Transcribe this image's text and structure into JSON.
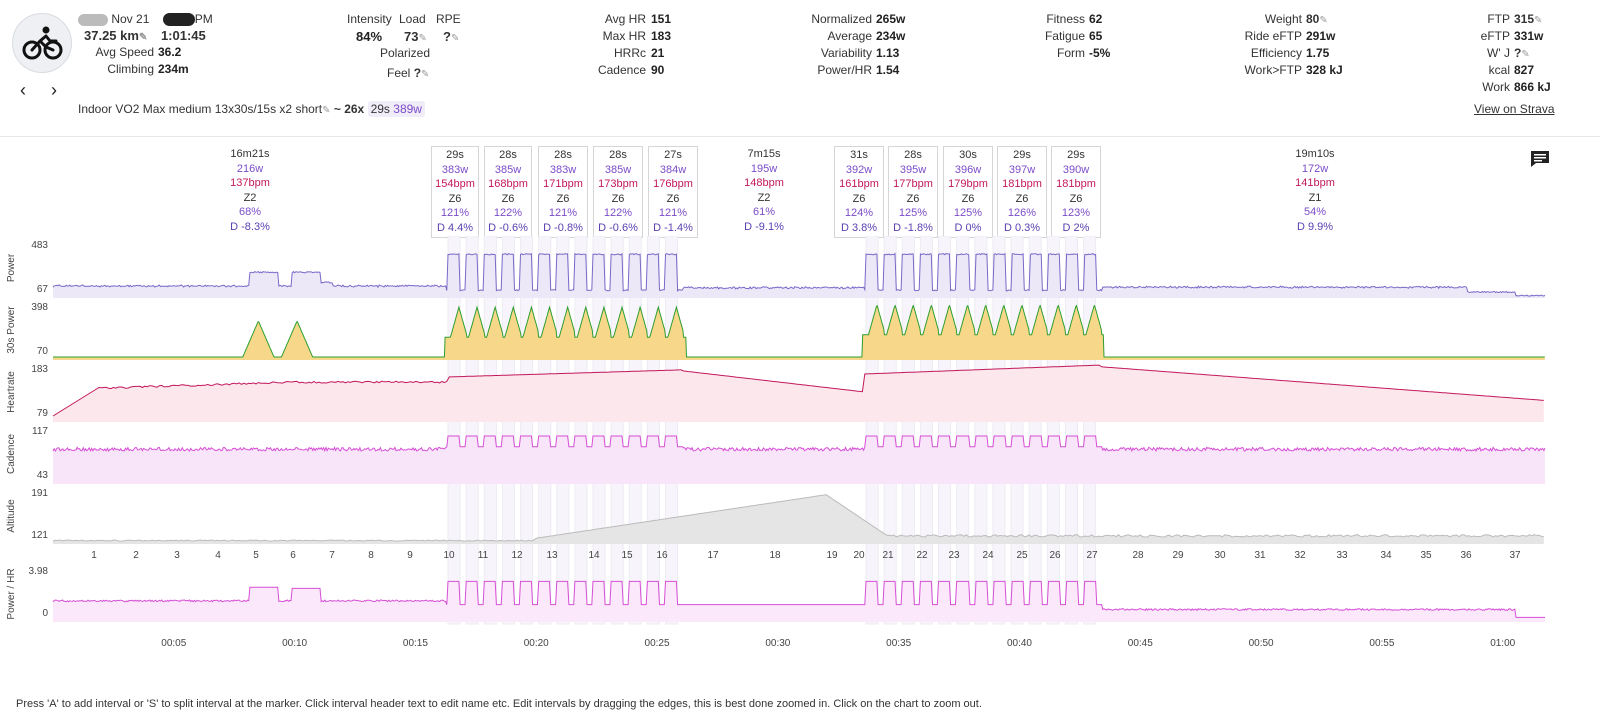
{
  "header": {
    "date": "Nov 21",
    "time_suffix": "PM",
    "distance": "37.25 km",
    "duration": "1:01:45",
    "avg_speed_label": "Avg Speed",
    "avg_speed": "36.2",
    "climbing_label": "Climbing",
    "climbing": "234m",
    "intensity_label": "Intensity",
    "intensity": "84%",
    "load_label": "Load",
    "load": "73",
    "rpe_label": "RPE",
    "rpe": "?",
    "polarized_label": "Polarized",
    "feel_label": "Feel",
    "feel": "?",
    "avg_hr_label": "Avg HR",
    "avg_hr": "151",
    "max_hr_label": "Max HR",
    "max_hr": "183",
    "hrrc_label": "HRRc",
    "hrrc": "21",
    "cadence_label": "Cadence",
    "cadence": "90",
    "normalized_label": "Normalized",
    "normalized": "265w",
    "average_label": "Average",
    "average": "234w",
    "variability_label": "Variability",
    "variability": "1.13",
    "power_hr_label": "Power/HR",
    "power_hr": "1.54",
    "fitness_label": "Fitness",
    "fitness": "62",
    "fatigue_label": "Fatigue",
    "fatigue": "65",
    "form_label": "Form",
    "form": "-5%",
    "weight_label": "Weight",
    "weight": "80",
    "ride_eftp_label": "Ride eFTP",
    "ride_eftp": "291w",
    "efficiency_label": "Efficiency",
    "efficiency": "1.75",
    "work_ftp_label": "Work>FTP",
    "work_ftp": "328 kJ",
    "ftp_label": "FTP",
    "ftp": "315",
    "eftp_label": "eFTP",
    "eftp": "331w",
    "wj_label": "W' J",
    "wj": "?",
    "kcal_label": "kcal",
    "kcal": "827",
    "work_label": "Work",
    "work": "866 kJ",
    "activity_name": "Indoor VO2 Max medium 13x30s/15s x2 short",
    "reps": "~ 26x",
    "rep_time": "29s",
    "rep_power": "389w",
    "strava_link": "View on Strava"
  },
  "intervals": [
    {
      "time": "16m21s",
      "w": "216w",
      "bpm": "137bpm",
      "zone": "Z2",
      "pct": "68%",
      "d": "D -8.3%"
    },
    {
      "time": "29s",
      "w": "383w",
      "bpm": "154bpm",
      "zone": "Z6",
      "pct": "121%",
      "d": "D 4.4%"
    },
    {
      "time": "28s",
      "w": "385w",
      "bpm": "168bpm",
      "zone": "Z6",
      "pct": "122%",
      "d": "D -0.6%"
    },
    {
      "time": "28s",
      "w": "383w",
      "bpm": "171bpm",
      "zone": "Z6",
      "pct": "121%",
      "d": "D -0.8%"
    },
    {
      "time": "28s",
      "w": "385w",
      "bpm": "173bpm",
      "zone": "Z6",
      "pct": "122%",
      "d": "D -0.6%"
    },
    {
      "time": "27s",
      "w": "384w",
      "bpm": "176bpm",
      "zone": "Z6",
      "pct": "121%",
      "d": "D -1.4%"
    },
    {
      "time": "7m15s",
      "w": "195w",
      "bpm": "148bpm",
      "zone": "Z2",
      "pct": "61%",
      "d": "D -9.1%"
    },
    {
      "time": "31s",
      "w": "392w",
      "bpm": "161bpm",
      "zone": "Z6",
      "pct": "124%",
      "d": "D 3.8%"
    },
    {
      "time": "28s",
      "w": "395w",
      "bpm": "177bpm",
      "zone": "Z6",
      "pct": "125%",
      "d": "D -1.8%"
    },
    {
      "time": "30s",
      "w": "396w",
      "bpm": "179bpm",
      "zone": "Z6",
      "pct": "125%",
      "d": "D 0%"
    },
    {
      "time": "29s",
      "w": "397w",
      "bpm": "181bpm",
      "zone": "Z6",
      "pct": "126%",
      "d": "D 0.3%"
    },
    {
      "time": "29s",
      "w": "390w",
      "bpm": "181bpm",
      "zone": "Z6",
      "pct": "123%",
      "d": "D 2%"
    },
    {
      "time": "19m10s",
      "w": "172w",
      "bpm": "141bpm",
      "zone": "Z1",
      "pct": "54%",
      "d": "D 9.9%"
    }
  ],
  "chart_data": {
    "type": "line",
    "x_unit": "elapsed time (mm:ss)",
    "x_range_minutes": [
      0,
      61.75
    ],
    "time_ticks": [
      "00:05",
      "00:10",
      "00:15",
      "00:20",
      "00:25",
      "00:30",
      "00:35",
      "00:40",
      "00:45",
      "00:50",
      "00:55",
      "01:00"
    ],
    "interval_numbers": [
      "1",
      "2",
      "3",
      "4",
      "5",
      "6",
      "7",
      "8",
      "9",
      "10",
      "11",
      "12",
      "13",
      "14",
      "15",
      "16",
      "17",
      "18",
      "19",
      "20",
      "21",
      "22",
      "23",
      "24",
      "25",
      "26",
      "27",
      "28",
      "29",
      "30",
      "31",
      "32",
      "33",
      "34",
      "35",
      "36",
      "37"
    ],
    "series": [
      {
        "name": "Power",
        "ylabel": "Power",
        "y_ticks": [
          "483",
          "67"
        ],
        "color": "#7b68c8"
      },
      {
        "name": "30s Power",
        "ylabel": "30s Power",
        "y_ticks": [
          "398",
          "70"
        ],
        "color": "#2e9e2e"
      },
      {
        "name": "Heartrate",
        "ylabel": "Heartrate",
        "y_ticks": [
          "183",
          "79"
        ],
        "color": "#c2185b"
      },
      {
        "name": "Cadence",
        "ylabel": "Cadence",
        "y_ticks": [
          "117",
          "43"
        ],
        "color": "#d64fd6"
      },
      {
        "name": "Altitude",
        "ylabel": "Altitude",
        "y_ticks": [
          "191",
          "121"
        ],
        "color": "#bbbbbb"
      },
      {
        "name": "Power / HR",
        "ylabel": "Power / HR",
        "y_ticks": [
          "3.98",
          "0"
        ],
        "color": "#d64fd6"
      }
    ]
  },
  "footer": {
    "hint": "Press 'A' to add interval or 'S' to split interval at the marker. Click interval header text to edit name etc. Edit intervals by dragging the edges, this is best done zoomed in. Click on the chart to zoom out."
  },
  "colors": {
    "accent": "#7b4cc8",
    "hr": "#c2185b",
    "cadence": "#d64fd6"
  }
}
